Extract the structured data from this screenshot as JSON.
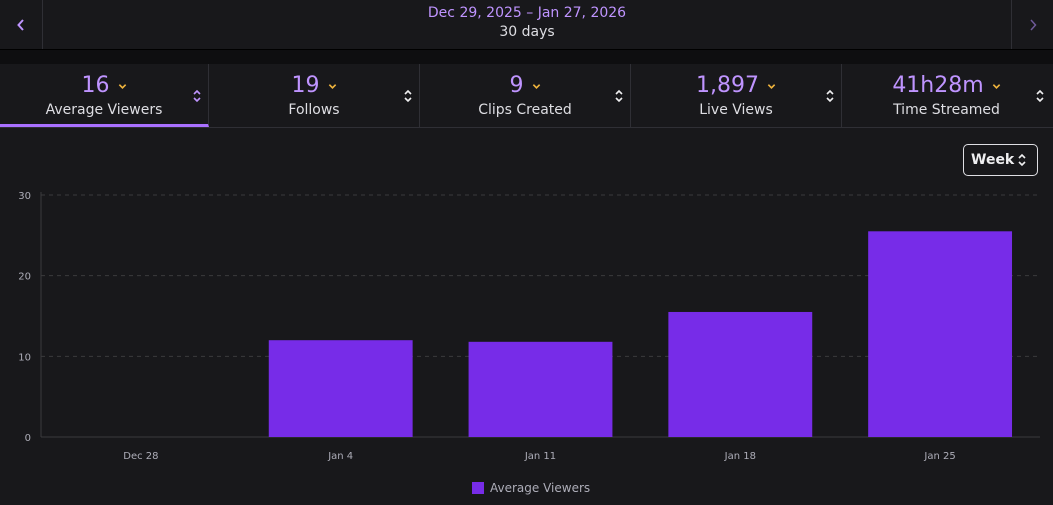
{
  "date_nav": {
    "prev_icon": "chevron-left-icon",
    "next_icon": "chevron-right-icon",
    "range": "Dec 29, 2025 – Jan 27, 2026",
    "days": "30 days"
  },
  "metrics": [
    {
      "value": "16",
      "label": "Average Viewers",
      "active": true
    },
    {
      "value": "19",
      "label": "Follows",
      "active": false
    },
    {
      "value": "9",
      "label": "Clips Created",
      "active": false
    },
    {
      "value": "1,897",
      "label": "Live Views",
      "active": false
    },
    {
      "value": "41h28m",
      "label": "Time Streamed",
      "active": false
    }
  ],
  "granularity": {
    "selected": "Week"
  },
  "colors": {
    "accent": "#bf94ff",
    "bar": "#772ce8",
    "chevron": "#f0b43d"
  },
  "chart_data": {
    "type": "bar",
    "categories": [
      "Dec 28",
      "Jan 4",
      "Jan 11",
      "Jan 18",
      "Jan 25"
    ],
    "series": [
      {
        "name": "Average Viewers",
        "values": [
          0,
          12,
          11.8,
          15.5,
          25.5
        ]
      }
    ],
    "ylim": [
      0,
      30
    ],
    "yticks": [
      0,
      10,
      20,
      30
    ],
    "grid": true,
    "legend": "bottom-center"
  }
}
